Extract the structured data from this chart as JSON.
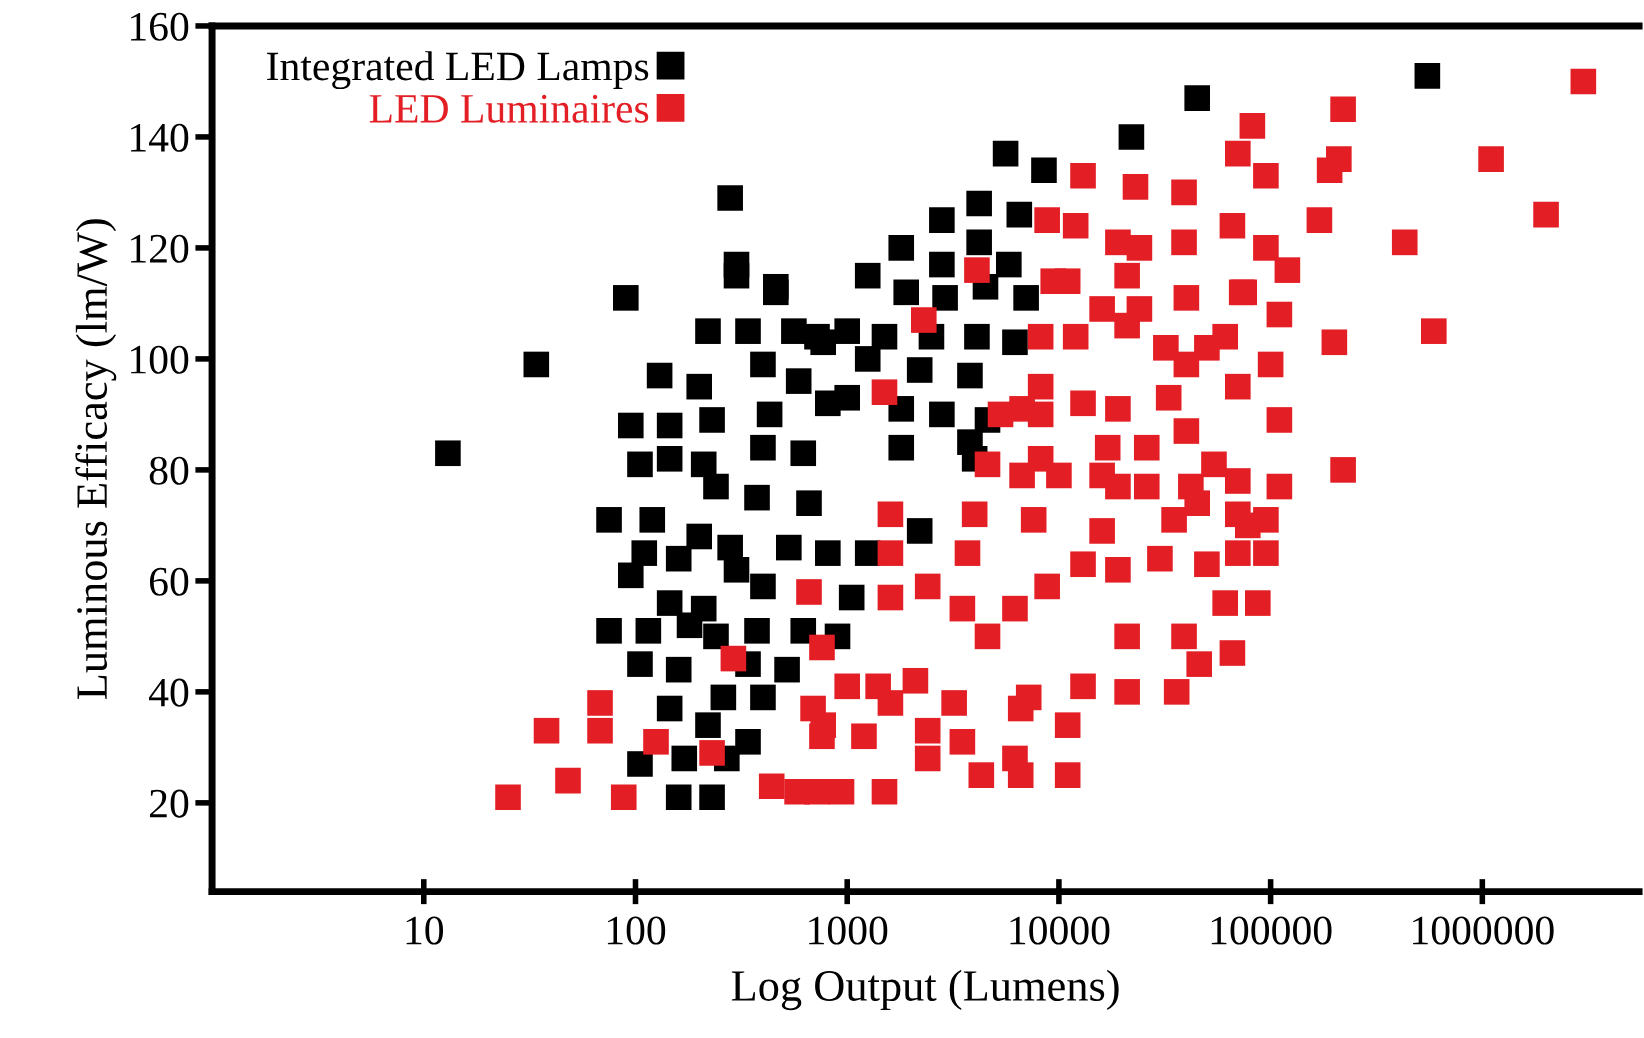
{
  "chart_data": {
    "type": "scatter",
    "xlabel": "Log Output (Lumens)",
    "ylabel": "Luminous Efficacy (lm/W)",
    "log": "x",
    "xlim": [
      1,
      5500000
    ],
    "ylim": [
      4,
      160
    ],
    "xticks": [
      10,
      100,
      1000,
      10000,
      100000,
      1000000
    ],
    "yticks": [
      20,
      40,
      60,
      80,
      100,
      120,
      140,
      160
    ],
    "grid": false,
    "legend": "top left",
    "marker": "square",
    "series": [
      {
        "name": "Integrated LED Lamps",
        "color": "#000000",
        "x": [
          13,
          34,
          90,
          280,
          300,
          460,
          45000,
          550000,
          5600,
          8500,
          22000,
          4200,
          2800,
          6500,
          1800,
          2800,
          4200,
          1250,
          1900,
          2900,
          5800,
          7000,
          4500,
          4100,
          6200,
          2500,
          2200,
          1500,
          1000,
          720,
          1800,
          2800,
          3800,
          1800,
          1000,
          1250,
          3800,
          4600,
          4000,
          2200,
          900,
          1050,
          1250,
          810,
          130,
          95,
          145,
          200,
          220,
          230,
          300,
          340,
          400,
          460,
          560,
          590,
          430,
          770,
          810,
          105,
          145,
          210,
          240,
          400,
          620,
          375,
          660,
          75,
          120,
          110,
          95,
          160,
          200,
          280,
          300,
          400,
          530,
          145,
          210,
          75,
          115,
          180,
          240,
          375,
          620,
          105,
          160,
          340,
          520,
          145,
          260,
          400,
          220,
          340,
          270,
          105,
          170,
          160,
          230
        ],
        "values": [
          83,
          99,
          111,
          129,
          117,
          113,
          147,
          151,
          137,
          134,
          140,
          128,
          125,
          126,
          120,
          117,
          121,
          115,
          112,
          111,
          117,
          111,
          113,
          104,
          103,
          104,
          98,
          104,
          105,
          104,
          91,
          90,
          97,
          84,
          93,
          100,
          85,
          89,
          82,
          69,
          50,
          57,
          65,
          65,
          97,
          88,
          88,
          95,
          105,
          89,
          115,
          105,
          99,
          112,
          105,
          96,
          90,
          103,
          92,
          81,
          82,
          81,
          77,
          84,
          83,
          75,
          74,
          71,
          71,
          65,
          61,
          64,
          68,
          66,
          62,
          59,
          66,
          56,
          55,
          51,
          51,
          52,
          50,
          51,
          51,
          45,
          44,
          45,
          44,
          37,
          39,
          39,
          34,
          31,
          28,
          27,
          28,
          21,
          21
        ]
      },
      {
        "name": "LED Luminaires",
        "color": "#e31e24",
        "x": [
          25,
          38,
          48,
          68,
          68,
          88,
          125,
          230,
          290,
          440,
          580,
          660,
          690,
          760,
          760,
          720,
          940,
          1500,
          1600,
          1200,
          770,
          1000,
          1400,
          2100,
          2400,
          2400,
          3200,
          3500,
          4300,
          6600,
          6200,
          6600,
          4600,
          7200,
          11000,
          11000,
          13000,
          21000,
          36000,
          21000,
          39000,
          46000,
          61000,
          66000,
          87000,
          95000,
          70000,
          50000,
          30000,
          19000,
          13000,
          8800,
          6200,
          3500,
          2400,
          1600,
          1600,
          3700,
          4000,
          7600,
          16000,
          35000,
          70000,
          95000,
          1600,
          3000000,
          1100000,
          2000000,
          430000,
          590000,
          220000,
          210000,
          190000,
          170000,
          82000,
          70000,
          95000,
          66000,
          95000,
          120000,
          73000,
          110000,
          200000,
          100000,
          110000,
          220000,
          39000,
          23000,
          13000,
          8800,
          12000,
          19000,
          39000,
          24000,
          9400,
          11000,
          21000,
          40000,
          75000,
          16000,
          24000,
          2300,
          1500,
          4100,
          8200,
          12000,
          21000,
          32000,
          50000,
          40000,
          61000,
          8200,
          13000,
          33000,
          70000,
          19000,
          8200,
          40000,
          26000,
          17000,
          5300,
          54000,
          70000,
          6700,
          10000,
          16000,
          26000,
          42000,
          110000,
          6700,
          4600,
          8200,
          19000,
          45000,
          78000
        ],
        "values": [
          21,
          33,
          24,
          38,
          33,
          21,
          31,
          29,
          46,
          23,
          22,
          58,
          37,
          32,
          48,
          22,
          22,
          22,
          38,
          32,
          34,
          41,
          41,
          42,
          33,
          28,
          38,
          31,
          25,
          25,
          28,
          37,
          50,
          39,
          34,
          25,
          41,
          40,
          40,
          50,
          50,
          45,
          56,
          47,
          56,
          65,
          65,
          63,
          64,
          62,
          63,
          59,
          55,
          55,
          59,
          57,
          65,
          65,
          72,
          71,
          69,
          71,
          72,
          71,
          72,
          150,
          136,
          126,
          121,
          105,
          145,
          136,
          134,
          125,
          142,
          137,
          133,
          124,
          120,
          116,
          112,
          108,
          103,
          99,
          89,
          80,
          130,
          131,
          133,
          125,
          124,
          121,
          121,
          120,
          114,
          114,
          115,
          111,
          112,
          109,
          109,
          107,
          94,
          116,
          104,
          104,
          106,
          102,
          102,
          99,
          104,
          95,
          92,
          93,
          95,
          91,
          90,
          87,
          84,
          84,
          90,
          81,
          78,
          91,
          79,
          79,
          77,
          77,
          77,
          79,
          81,
          82,
          77,
          74,
          70
        ]
      }
    ]
  }
}
